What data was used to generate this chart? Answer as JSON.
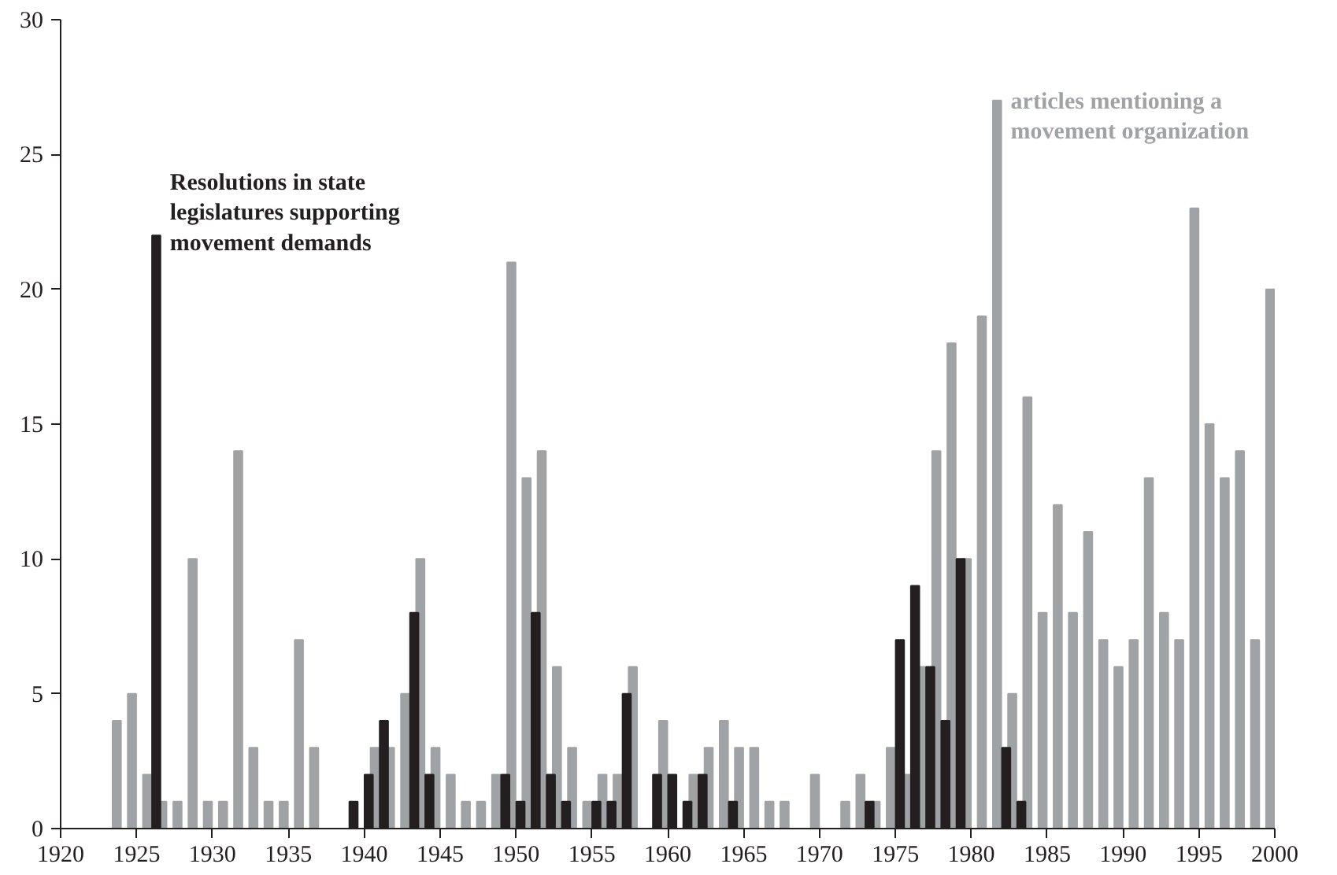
{
  "chart_data": {
    "type": "bar",
    "x": [
      1924,
      1925,
      1926,
      1927,
      1928,
      1929,
      1930,
      1931,
      1932,
      1933,
      1934,
      1935,
      1936,
      1937,
      1938,
      1939,
      1940,
      1941,
      1942,
      1943,
      1944,
      1945,
      1946,
      1947,
      1948,
      1949,
      1950,
      1951,
      1952,
      1953,
      1954,
      1955,
      1956,
      1957,
      1958,
      1959,
      1960,
      1961,
      1962,
      1963,
      1964,
      1965,
      1966,
      1967,
      1968,
      1969,
      1970,
      1971,
      1972,
      1973,
      1974,
      1975,
      1976,
      1977,
      1978,
      1979,
      1980,
      1981,
      1982,
      1983,
      1984,
      1985,
      1986,
      1987,
      1988,
      1989,
      1990,
      1991,
      1992,
      1993,
      1994,
      1995,
      1996,
      1997,
      1998,
      1999,
      2000
    ],
    "series": [
      {
        "name": "articles mentioning a movement organization",
        "color": "#a0a3a6",
        "values": [
          4,
          5,
          2,
          1,
          1,
          10,
          1,
          1,
          14,
          3,
          1,
          1,
          7,
          3,
          null,
          null,
          null,
          3,
          3,
          5,
          10,
          3,
          2,
          1,
          1,
          2,
          21,
          13,
          14,
          6,
          3,
          1,
          2,
          2,
          6,
          null,
          4,
          null,
          2,
          3,
          4,
          3,
          3,
          1,
          1,
          null,
          2,
          null,
          1,
          2,
          1,
          3,
          2,
          6,
          14,
          18,
          10,
          19,
          27,
          5,
          16,
          8,
          12,
          8,
          11,
          7,
          6,
          7,
          13,
          8,
          7,
          23,
          15,
          13,
          14,
          7,
          20
        ]
      },
      {
        "name": "Resolutions in state legislatures supporting movement demands",
        "color": "#231f20",
        "values": [
          null,
          null,
          22,
          null,
          null,
          null,
          null,
          null,
          null,
          null,
          null,
          null,
          null,
          null,
          null,
          1,
          2,
          4,
          null,
          8,
          2,
          null,
          null,
          null,
          null,
          2,
          1,
          8,
          2,
          1,
          null,
          1,
          1,
          5,
          null,
          2,
          2,
          1,
          2,
          null,
          1,
          null,
          null,
          null,
          null,
          null,
          null,
          null,
          null,
          1,
          null,
          7,
          9,
          6,
          4,
          10,
          null,
          null,
          3,
          1,
          null,
          null,
          null,
          null,
          null,
          null,
          null,
          null,
          null,
          null,
          null,
          null,
          null,
          null,
          null,
          null,
          null
        ]
      }
    ],
    "xlim": [
      1920,
      2000
    ],
    "xticks": [
      1920,
      1925,
      1930,
      1935,
      1940,
      1945,
      1950,
      1955,
      1960,
      1965,
      1970,
      1975,
      1980,
      1985,
      1990,
      1995,
      2000
    ],
    "ylim": [
      0,
      30
    ],
    "yticks": [
      0,
      5,
      10,
      15,
      20,
      25,
      30
    ],
    "grid": false
  }
}
